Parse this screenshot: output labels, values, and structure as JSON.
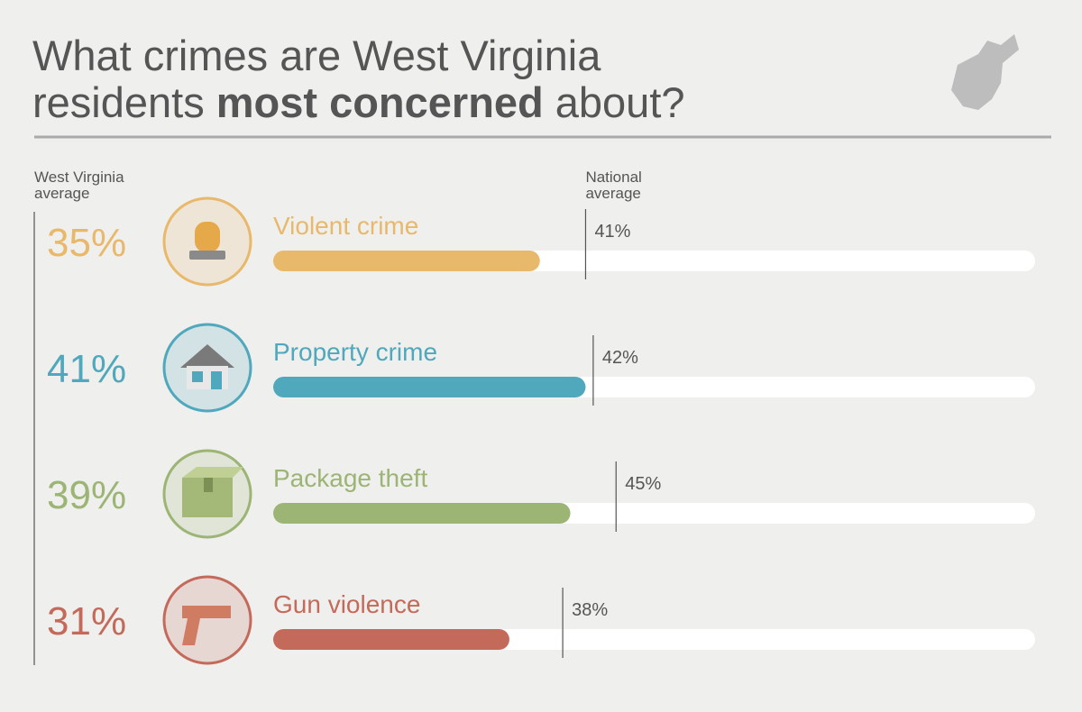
{
  "chart_data": {
    "type": "bar",
    "title_parts": [
      {
        "text": "What crimes are West Virginia",
        "bold": false
      },
      {
        "text": "residents",
        "bold": false
      },
      {
        "text": "most concerned",
        "bold": true
      },
      {
        "text": "about?",
        "bold": false
      }
    ],
    "categories": [
      "Violent crime",
      "Property crime",
      "Package theft",
      "Gun violence"
    ],
    "category_colors": [
      "#e8b86b",
      "#4fa8bb",
      "#9cb574",
      "#c46a5a"
    ],
    "series": [
      {
        "name": "West Virginia average",
        "values": [
          35,
          41,
          39,
          31
        ],
        "value_labels": [
          "35%",
          "41%",
          "39%",
          "31%"
        ]
      },
      {
        "name": "National average",
        "values": [
          41,
          42,
          45,
          38
        ],
        "value_labels": [
          "41%",
          "42%",
          "45%",
          "38%"
        ]
      }
    ],
    "xlim": [
      0,
      100
    ]
  }
}
